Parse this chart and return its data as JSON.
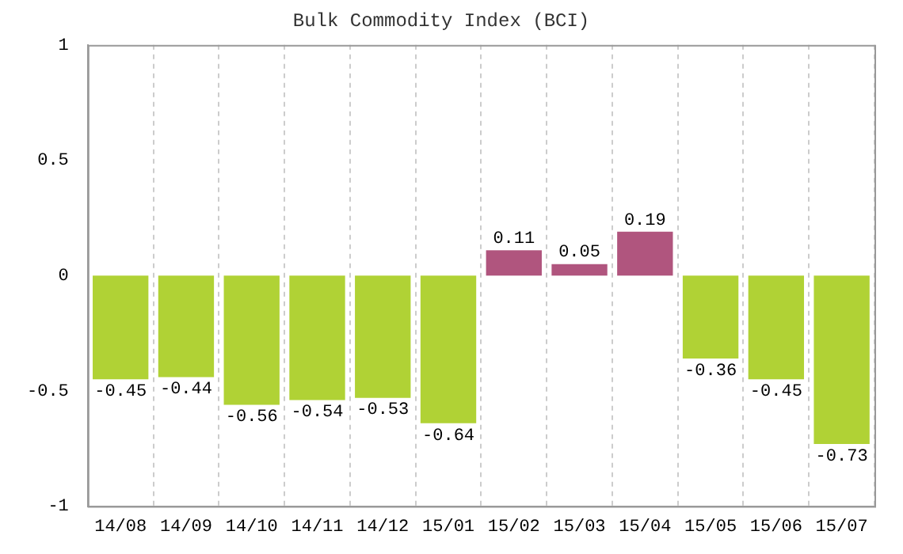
{
  "chart_data": {
    "type": "bar",
    "title": "Bulk Commodity Index (BCI)",
    "categories": [
      "14/08",
      "14/09",
      "14/10",
      "14/11",
      "14/12",
      "15/01",
      "15/02",
      "15/03",
      "15/04",
      "15/05",
      "15/06",
      "15/07"
    ],
    "values": [
      -0.45,
      -0.44,
      -0.56,
      -0.54,
      -0.53,
      -0.64,
      0.11,
      0.05,
      0.19,
      -0.36,
      -0.45,
      -0.73
    ],
    "colors": [
      "#b0d235",
      "#b0d235",
      "#b0d235",
      "#b0d235",
      "#b0d235",
      "#b0d235",
      "#b0557e",
      "#b0557e",
      "#b0557e",
      "#b0d235",
      "#b0d235",
      "#b0d235"
    ],
    "ylim": [
      -1,
      1
    ],
    "yticks": [
      -1,
      -0.5,
      0,
      0.5,
      1
    ],
    "grid": "x",
    "data_labels": true,
    "legend": false
  }
}
